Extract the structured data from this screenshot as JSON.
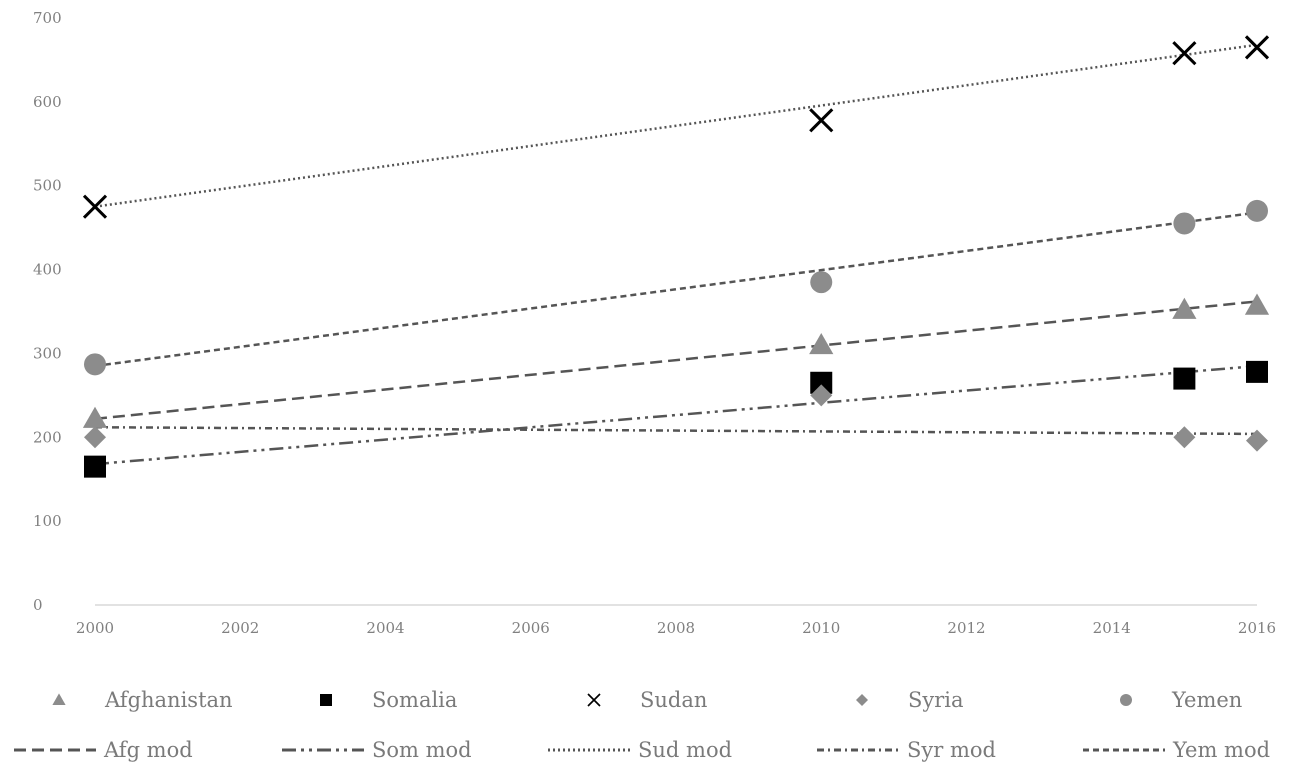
{
  "chart_data": {
    "type": "scatter",
    "title": "",
    "xlabel": "",
    "ylabel": "",
    "xlim": [
      2000,
      2016
    ],
    "ylim": [
      0,
      700
    ],
    "x_ticks": [
      2000,
      2002,
      2004,
      2006,
      2008,
      2010,
      2012,
      2014,
      2016
    ],
    "y_ticks": [
      0,
      100,
      200,
      300,
      400,
      500,
      600,
      700
    ],
    "grid": false,
    "legend_position": "bottom",
    "series": [
      {
        "name": "Afghanistan",
        "marker": "triangle",
        "color": "#8c8c8c",
        "points": [
          [
            2000,
            222
          ],
          [
            2010,
            310
          ],
          [
            2015,
            352
          ],
          [
            2016,
            357
          ]
        ]
      },
      {
        "name": "Somalia",
        "marker": "square",
        "color": "#000000",
        "points": [
          [
            2000,
            165
          ],
          [
            2010,
            265
          ],
          [
            2015,
            270
          ],
          [
            2016,
            278
          ]
        ]
      },
      {
        "name": "Sudan",
        "marker": "x",
        "color": "#000000",
        "points": [
          [
            2000,
            475
          ],
          [
            2010,
            578
          ],
          [
            2015,
            658
          ],
          [
            2016,
            665
          ]
        ]
      },
      {
        "name": "Syria",
        "marker": "diamond",
        "color": "#8c8c8c",
        "points": [
          [
            2000,
            200
          ],
          [
            2010,
            250
          ],
          [
            2015,
            200
          ],
          [
            2016,
            196
          ]
        ]
      },
      {
        "name": "Yemen",
        "marker": "circle",
        "color": "#8c8c8c",
        "points": [
          [
            2000,
            287
          ],
          [
            2010,
            385
          ],
          [
            2015,
            455
          ],
          [
            2016,
            470
          ]
        ]
      }
    ],
    "model_series": [
      {
        "name": "Afg mod",
        "dash": "long-dash",
        "color": "#555555",
        "points": [
          [
            2000,
            222
          ],
          [
            2016,
            362
          ]
        ]
      },
      {
        "name": "Som mod",
        "dash": "dash-dot-dot",
        "color": "#555555",
        "points": [
          [
            2000,
            168
          ],
          [
            2016,
            285
          ]
        ]
      },
      {
        "name": "Sud mod",
        "dash": "dotted",
        "color": "#555555",
        "points": [
          [
            2000,
            475
          ],
          [
            2016,
            668
          ]
        ]
      },
      {
        "name": "Syr mod",
        "dash": "dash-dot",
        "color": "#555555",
        "points": [
          [
            2000,
            212
          ],
          [
            2016,
            204
          ]
        ]
      },
      {
        "name": "Yem mod",
        "dash": "dash",
        "color": "#555555",
        "points": [
          [
            2000,
            285
          ],
          [
            2016,
            468
          ]
        ]
      }
    ]
  }
}
